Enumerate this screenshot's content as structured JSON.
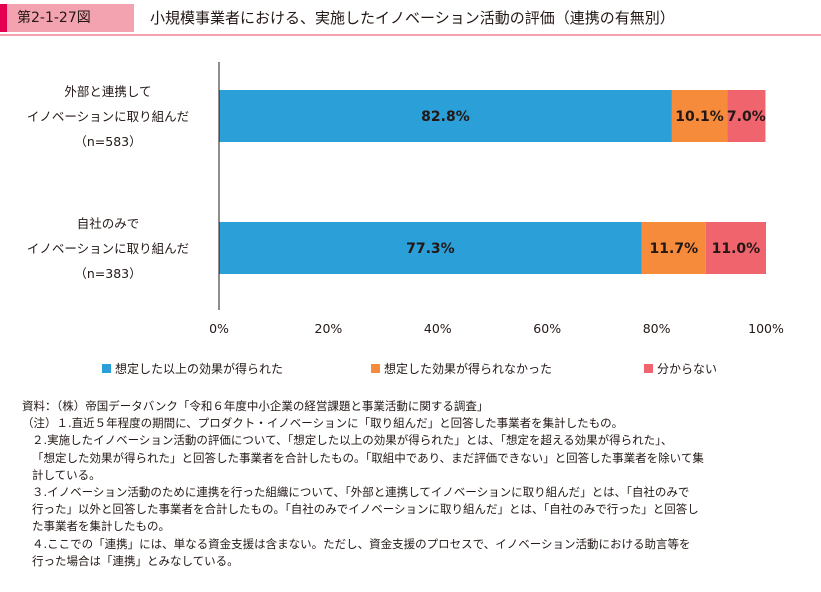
{
  "header": {
    "figure_number": "第2-1-27図",
    "title": "小規模事業者における、実施したイノベーション活動の評価（連携の有無別）"
  },
  "chart_data": {
    "type": "bar",
    "orientation": "horizontal",
    "stacked": true,
    "categories": [
      [
        "外部と連携して",
        "イノベーションに取り組んだ",
        "（n=583）"
      ],
      [
        "自社のみで",
        "イノベーションに取り組んだ",
        "（n=383）"
      ]
    ],
    "series": [
      {
        "name": "想定した以上の効果が得られた",
        "values": [
          82.8,
          77.3
        ],
        "labels": [
          "82.8%",
          "77.3%"
        ],
        "color": "#2a9fd8"
      },
      {
        "name": "想定した効果が得られなかった",
        "values": [
          10.1,
          11.7
        ],
        "labels": [
          "10.1%",
          "11.7%"
        ],
        "color": "#f58b3b"
      },
      {
        "name": "分からない",
        "values": [
          7.0,
          11.0
        ],
        "labels": [
          "7.0%",
          "11.0%"
        ],
        "color": "#f0646e"
      }
    ],
    "x_ticks": [
      "0%",
      "20%",
      "40%",
      "60%",
      "80%",
      "100%"
    ],
    "xlim": [
      0,
      100
    ],
    "grid": false,
    "legend_position": "bottom"
  },
  "notes": {
    "source": "資料：（株）帝国データバンク「令和６年度中小企業の経営課題と事業活動に関する調査」",
    "lines": [
      "（注）１.直近５年程度の期間に、プロダクト・イノベーションに「取り組んだ」と回答した事業者を集計したもの。",
      "２.実施したイノベーション活動の評価について、「想定した以上の効果が得られた」とは、「想定を超える効果が得られた」、",
      "「想定した効果が得られた」と回答した事業者を合計したもの。「取組中であり、まだ評価できない」と回答した事業者を除いて集",
      "計している。",
      "３.イノベーション活動のために連携を行った組織について、「外部と連携してイノベーションに取り組んだ」とは、「自社のみで",
      "行った」以外と回答した事業者を合計したもの。「自社のみでイノベーションに取り組んだ」とは、「自社のみで行った」と回答し",
      "た事業者を集計したもの。",
      "４.ここでの「連携」には、単なる資金支援は含まない。ただし、資金支援のプロセスで、イノベーション活動における助言等を",
      "行った場合は「連携」とみなしている。"
    ]
  }
}
